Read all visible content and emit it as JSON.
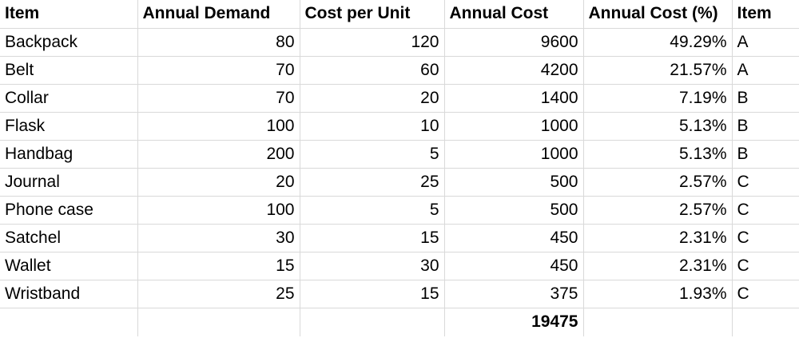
{
  "headers": [
    "Item",
    "Annual Demand",
    "Cost per Unit",
    "Annual Cost",
    "Annual Cost (%)",
    "Item"
  ],
  "rows": [
    {
      "item": "Backpack",
      "annual_demand": "80",
      "cost_per_unit": "120",
      "annual_cost": "9600",
      "annual_cost_pct": "49.29%",
      "class": "A"
    },
    {
      "item": "Belt",
      "annual_demand": "70",
      "cost_per_unit": "60",
      "annual_cost": "4200",
      "annual_cost_pct": "21.57%",
      "class": "A"
    },
    {
      "item": "Collar",
      "annual_demand": "70",
      "cost_per_unit": "20",
      "annual_cost": "1400",
      "annual_cost_pct": "7.19%",
      "class": "B"
    },
    {
      "item": "Flask",
      "annual_demand": "100",
      "cost_per_unit": "10",
      "annual_cost": "1000",
      "annual_cost_pct": "5.13%",
      "class": "B"
    },
    {
      "item": "Handbag",
      "annual_demand": "200",
      "cost_per_unit": "5",
      "annual_cost": "1000",
      "annual_cost_pct": "5.13%",
      "class": "B"
    },
    {
      "item": "Journal",
      "annual_demand": "20",
      "cost_per_unit": "25",
      "annual_cost": "500",
      "annual_cost_pct": "2.57%",
      "class": "C"
    },
    {
      "item": "Phone case",
      "annual_demand": "100",
      "cost_per_unit": "5",
      "annual_cost": "500",
      "annual_cost_pct": "2.57%",
      "class": "C"
    },
    {
      "item": "Satchel",
      "annual_demand": "30",
      "cost_per_unit": "15",
      "annual_cost": "450",
      "annual_cost_pct": "2.31%",
      "class": "C"
    },
    {
      "item": "Wallet",
      "annual_demand": "15",
      "cost_per_unit": "30",
      "annual_cost": "450",
      "annual_cost_pct": "2.31%",
      "class": "C"
    },
    {
      "item": "Wristband",
      "annual_demand": "25",
      "cost_per_unit": "15",
      "annual_cost": "375",
      "annual_cost_pct": "1.93%",
      "class": "C"
    }
  ],
  "total": {
    "annual_cost": "19475"
  },
  "colors": {
    "text": "#000000",
    "gridline": "#d9d9d9",
    "background": "#ffffff"
  }
}
